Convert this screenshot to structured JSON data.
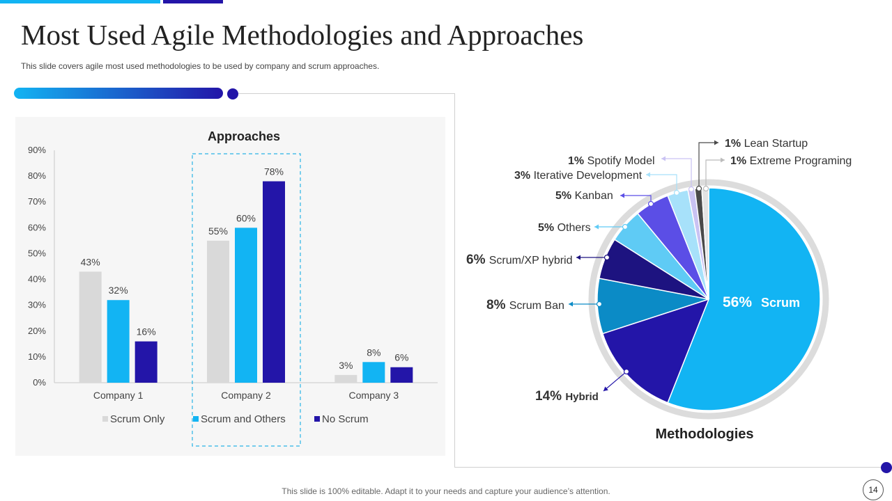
{
  "slide": {
    "title": "Most Used Agile Methodologies and Approaches",
    "subtitle": "This slide covers agile most used methodologies to be used by company and scrum approaches.",
    "footer": "This slide is 100% editable. Adapt it to your needs and capture your audience’s attention.",
    "page_number": "14"
  },
  "colors": {
    "accent_light": "#12b4f3",
    "accent_dark": "#2315a8",
    "grey": "#d9d9d9"
  },
  "chart_data": [
    {
      "type": "bar",
      "title": "Approaches",
      "categories": [
        "Company 1",
        "Company 2",
        "Company 3"
      ],
      "series": [
        {
          "name": "Scrum Only",
          "values": [
            43,
            55,
            3
          ],
          "color": "#d9d9d9"
        },
        {
          "name": "Scrum and Others",
          "values": [
            32,
            60,
            8
          ],
          "color": "#12b4f3"
        },
        {
          "name": "No Scrum",
          "values": [
            16,
            78,
            6
          ],
          "color": "#2315a8"
        }
      ],
      "value_labels": [
        [
          "43%",
          "55%",
          "3%"
        ],
        [
          "32%",
          "60%",
          "8%"
        ],
        [
          "16%",
          "78%",
          "6%"
        ]
      ],
      "ylim": [
        0,
        90
      ],
      "yticks": [
        "0%",
        "10%",
        "20%",
        "30%",
        "40%",
        "50%",
        "60%",
        "70%",
        "80%",
        "90%"
      ],
      "highlighted_category": "Company 2",
      "legend": "bottom",
      "grid": false
    },
    {
      "type": "pie",
      "title": "Methodologies",
      "slices": [
        {
          "pct": "56%",
          "label": "Scrum",
          "value": 56,
          "color": "#12b4f3"
        },
        {
          "pct": "14%",
          "label": "Hybrid",
          "value": 14,
          "color": "#2315a8"
        },
        {
          "pct": "8%",
          "label": "Scrum Ban",
          "value": 8,
          "color": "#0b8bc6"
        },
        {
          "pct": "6%",
          "label": "Scrum/XP hybrid",
          "value": 6,
          "color": "#1d1380"
        },
        {
          "pct": "5%",
          "label": "Others",
          "value": 5,
          "color": "#5fcbf5"
        },
        {
          "pct": "5%",
          "label": "Kanban",
          "value": 5,
          "color": "#5b4ee6"
        },
        {
          "pct": "3%",
          "label": "Iterative  Development",
          "value": 3,
          "color": "#a7e1fa"
        },
        {
          "pct": "1%",
          "label": "Spotify Model",
          "value": 1,
          "color": "#c9c2f3"
        },
        {
          "pct": "1%",
          "label": "Lean Startup",
          "value": 1,
          "color": "#4a4a4a"
        },
        {
          "pct": "1%",
          "label": "Extreme Programing",
          "value": 1,
          "color": "#e3e3e3"
        }
      ]
    }
  ]
}
